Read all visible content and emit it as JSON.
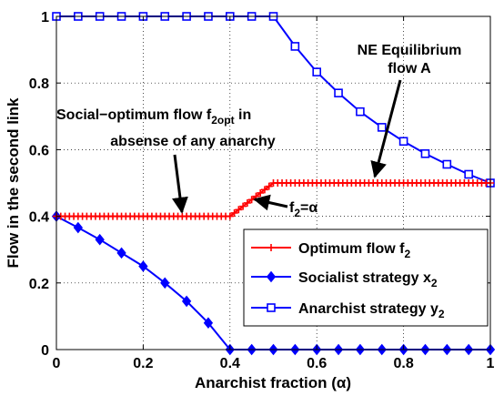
{
  "chart_data": {
    "type": "line",
    "xlabel": "Anarchist fraction (α)",
    "ylabel": "Flow in the second link",
    "xlim": [
      0,
      1
    ],
    "ylim": [
      0,
      1
    ],
    "xticks": [
      "0",
      "0.2",
      "0.4",
      "0.6",
      "0.8",
      "1"
    ],
    "yticks": [
      "0",
      "0.2",
      "0.4",
      "0.6",
      "0.8",
      "1"
    ],
    "grid": "dotted",
    "legend_position": "bottom-right",
    "colors": {
      "optimum": "#ff0000",
      "strategy": "#0000ff"
    },
    "series": [
      {
        "name": "Optimum flow f",
        "subscript": "2",
        "marker": "plus",
        "color": "#ff0000",
        "x": [
          0,
          0.01,
          0.02,
          0.03,
          0.04,
          0.05,
          0.06,
          0.07,
          0.08,
          0.09,
          0.1,
          0.11,
          0.12,
          0.13,
          0.14,
          0.15,
          0.16,
          0.17,
          0.18,
          0.19,
          0.2,
          0.21,
          0.22,
          0.23,
          0.24,
          0.25,
          0.26,
          0.27,
          0.28,
          0.29,
          0.3,
          0.31,
          0.32,
          0.33,
          0.34,
          0.35,
          0.36,
          0.37,
          0.38,
          0.39,
          0.4,
          0.41,
          0.42,
          0.43,
          0.44,
          0.45,
          0.46,
          0.47,
          0.48,
          0.49,
          0.5,
          0.51,
          0.52,
          0.53,
          0.54,
          0.55,
          0.56,
          0.57,
          0.58,
          0.59,
          0.6,
          0.61,
          0.62,
          0.63,
          0.64,
          0.65,
          0.66,
          0.67,
          0.68,
          0.69,
          0.7,
          0.71,
          0.72,
          0.73,
          0.74,
          0.75,
          0.76,
          0.77,
          0.78,
          0.79,
          0.8,
          0.81,
          0.82,
          0.83,
          0.84,
          0.85,
          0.86,
          0.87,
          0.88,
          0.89,
          0.9,
          0.91,
          0.92,
          0.93,
          0.94,
          0.95,
          0.96,
          0.97,
          0.98,
          0.99,
          1.0
        ],
        "y": [
          0.4,
          0.4,
          0.4,
          0.4,
          0.4,
          0.4,
          0.4,
          0.4,
          0.4,
          0.4,
          0.4,
          0.4,
          0.4,
          0.4,
          0.4,
          0.4,
          0.4,
          0.4,
          0.4,
          0.4,
          0.4,
          0.4,
          0.4,
          0.4,
          0.4,
          0.4,
          0.4,
          0.4,
          0.4,
          0.4,
          0.4,
          0.4,
          0.4,
          0.4,
          0.4,
          0.4,
          0.4,
          0.4,
          0.4,
          0.4,
          0.4,
          0.41,
          0.42,
          0.43,
          0.44,
          0.45,
          0.46,
          0.47,
          0.48,
          0.49,
          0.5,
          0.5,
          0.5,
          0.5,
          0.5,
          0.5,
          0.5,
          0.5,
          0.5,
          0.5,
          0.5,
          0.5,
          0.5,
          0.5,
          0.5,
          0.5,
          0.5,
          0.5,
          0.5,
          0.5,
          0.5,
          0.5,
          0.5,
          0.5,
          0.5,
          0.5,
          0.5,
          0.5,
          0.5,
          0.5,
          0.5,
          0.5,
          0.5,
          0.5,
          0.5,
          0.5,
          0.5,
          0.5,
          0.5,
          0.5,
          0.5,
          0.5,
          0.5,
          0.5,
          0.5,
          0.5,
          0.5,
          0.5,
          0.5,
          0.5,
          0.5
        ]
      },
      {
        "name": "Socialist strategy x",
        "subscript": "2",
        "marker": "diamond",
        "color": "#0000ff",
        "x": [
          0,
          0.05,
          0.1,
          0.15,
          0.2,
          0.25,
          0.3,
          0.35,
          0.4,
          0.45,
          0.5,
          0.55,
          0.6,
          0.65,
          0.7,
          0.75,
          0.8,
          0.85,
          0.9,
          0.95,
          1.0
        ],
        "y": [
          0.4,
          0.366,
          0.33,
          0.29,
          0.25,
          0.2,
          0.145,
          0.08,
          0,
          0,
          0,
          0,
          0,
          0,
          0,
          0,
          0,
          0,
          0,
          0,
          0
        ]
      },
      {
        "name": "Anarchist strategy y",
        "subscript": "2",
        "marker": "square",
        "color": "#0000ff",
        "x": [
          0,
          0.05,
          0.1,
          0.15,
          0.2,
          0.25,
          0.3,
          0.35,
          0.4,
          0.45,
          0.5,
          0.55,
          0.6,
          0.65,
          0.7,
          0.75,
          0.8,
          0.85,
          0.9,
          0.95,
          1.0
        ],
        "y": [
          1,
          1,
          1,
          1,
          1,
          1,
          1,
          1,
          1,
          1,
          1,
          0.91,
          0.833,
          0.77,
          0.714,
          0.667,
          0.625,
          0.588,
          0.556,
          0.526,
          0.5
        ]
      }
    ],
    "annotations": {
      "ne_line1": "NE Equilibrium",
      "ne_line2": "flow A",
      "social_line1": "Social−optimum flow f",
      "social_sub": "2opt",
      "social_tail": " in",
      "social_line2": "absense of any anarchy",
      "f2_main": "f",
      "f2_sub": "2",
      "f2_tail": "=α"
    }
  }
}
